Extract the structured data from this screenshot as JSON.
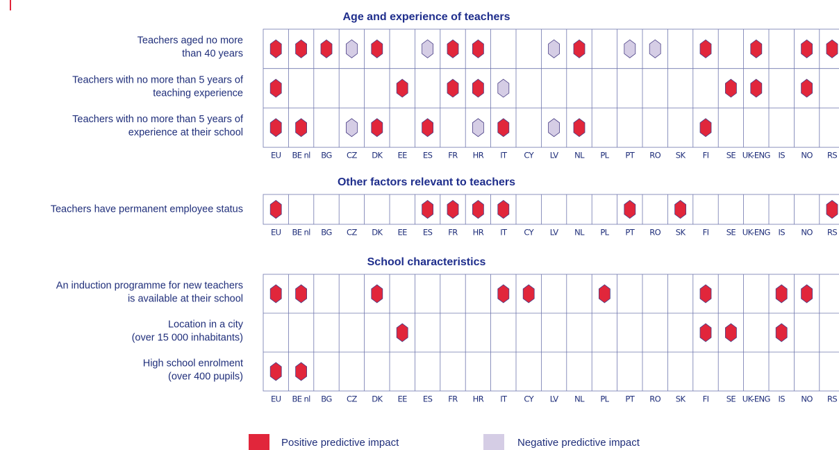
{
  "columns": [
    "EU",
    "BE nl",
    "BG",
    "CZ",
    "DK",
    "EE",
    "ES",
    "FR",
    "HR",
    "IT",
    "CY",
    "LV",
    "NL",
    "PL",
    "PT",
    "RO",
    "SK",
    "FI",
    "SE",
    "UK-ENG",
    "IS",
    "NO",
    "RS"
  ],
  "sections": [
    {
      "title": "Age and experience of teachers",
      "rows": [
        {
          "label": [
            "Teachers aged no more",
            "than 40 years"
          ],
          "positive": [
            "EU",
            "BE nl",
            "BG",
            "DK",
            "FR",
            "HR",
            "NL",
            "FI",
            "UK-ENG",
            "NO",
            "RS"
          ],
          "negative": [
            "CZ",
            "ES",
            "LV",
            "PT",
            "RO"
          ]
        },
        {
          "label": [
            "Teachers with no more than 5 years of",
            "teaching experience"
          ],
          "positive": [
            "EU",
            "EE",
            "FR",
            "HR",
            "SE",
            "UK-ENG",
            "NO"
          ],
          "negative": [
            "IT"
          ]
        },
        {
          "label": [
            "Teachers with no more than 5 years of",
            "experience at their school"
          ],
          "positive": [
            "EU",
            "BE nl",
            "DK",
            "ES",
            "IT",
            "NL",
            "FI"
          ],
          "negative": [
            "CZ",
            "HR",
            "LV"
          ]
        }
      ]
    },
    {
      "title": "Other factors relevant to teachers",
      "rows": [
        {
          "label": [
            "Teachers have permanent employee status"
          ],
          "positive": [
            "EU",
            "ES",
            "FR",
            "HR",
            "IT",
            "PT",
            "SK",
            "RS"
          ],
          "negative": []
        }
      ]
    },
    {
      "title": "School characteristics",
      "rows": [
        {
          "label": [
            "An induction programme for new teachers",
            "is available at their school"
          ],
          "positive": [
            "EU",
            "BE nl",
            "DK",
            "IT",
            "CY",
            "PL",
            "FI",
            "IS",
            "NO"
          ],
          "negative": []
        },
        {
          "label": [
            "Location in a city",
            "(over 15 000 inhabitants)"
          ],
          "positive": [
            "EE",
            "FI",
            "SE",
            "IS"
          ],
          "negative": []
        },
        {
          "label": [
            "High school enrolment",
            "(over 400 pupils)"
          ],
          "positive": [
            "EU",
            "BE nl"
          ],
          "negative": []
        }
      ]
    }
  ],
  "legend": {
    "positive": {
      "label": "Positive predictive impact",
      "color": "#e1263b"
    },
    "negative": {
      "label": "Negative predictive impact",
      "color": "#d5cde5"
    }
  }
}
